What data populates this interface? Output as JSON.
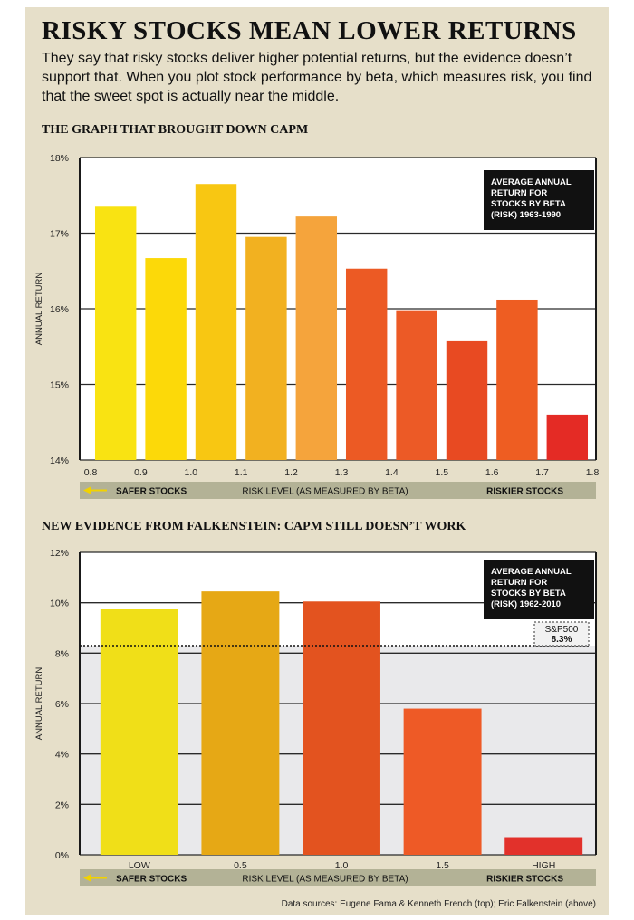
{
  "header": {
    "title": "RISKY STOCKS MEAN LOWER RETURNS",
    "subtitle": "They say that risky stocks deliver higher potential returns, but the evidence doesn’t support that. When you plot stock performance by beta, which measures risk, you find that the sweet spot is actually near the middle."
  },
  "colors": {
    "background": "#e6dfc9",
    "plot_area": "#ffffff",
    "shaded_zone": "#e9e9eb",
    "strip": "#b3b296",
    "legend_box": "#111111",
    "arrow": "#f2d200"
  },
  "chart_data": [
    {
      "type": "bar",
      "section_title": "THE GRAPH THAT BROUGHT DOWN CAPM",
      "ylabel": "ANNUAL RETURN",
      "xlabel": "RISK LEVEL (AS MEASURED BY BETA)",
      "left_label": "SAFER STOCKS",
      "right_label": "RISKIER STOCKS",
      "legend": [
        "AVERAGE ANNUAL",
        "RETURN FOR",
        "STOCKS BY BETA",
        "(RISK) 1963-1990"
      ],
      "ylim": [
        14,
        18
      ],
      "yticks": [
        14,
        15,
        16,
        17,
        18
      ],
      "ytick_labels": [
        "14%",
        "15%",
        "16%",
        "17%",
        "18%"
      ],
      "x_tick_labels": [
        "0.8",
        "0.9",
        "1.0",
        "1.1",
        "1.2",
        "1.3",
        "1.4",
        "1.5",
        "1.6",
        "1.7",
        "1.8"
      ],
      "grid": true,
      "values": [
        17.35,
        16.67,
        17.65,
        16.95,
        17.22,
        16.53,
        15.98,
        15.57,
        16.12,
        14.6
      ],
      "colors": [
        "#f9e312",
        "#fcd909",
        "#f8c712",
        "#f2b120",
        "#f5a43c",
        "#ec5a24",
        "#ec5a26",
        "#e84a22",
        "#ee5d22",
        "#e42b25"
      ]
    },
    {
      "type": "bar",
      "section_title": "NEW EVIDENCE FROM FALKENSTEIN: CAPM STILL DOESN’T WORK",
      "ylabel": "ANNUAL RETURN",
      "xlabel": "RISK LEVEL (AS MEASURED BY BETA)",
      "left_label": "SAFER STOCKS",
      "right_label": "RISKIER STOCKS",
      "legend": [
        "AVERAGE ANNUAL",
        "RETURN FOR",
        "STOCKS BY BETA",
        "(RISK) 1962-2010"
      ],
      "reference": {
        "name": "S&P500",
        "value": 8.3,
        "label": "8.3%"
      },
      "ylim": [
        0,
        12
      ],
      "yticks": [
        0,
        2,
        4,
        6,
        8,
        10,
        12
      ],
      "ytick_labels": [
        "0%",
        "2%",
        "4%",
        "6%",
        "8%",
        "10%",
        "12%"
      ],
      "categories": [
        "LOW",
        "0.5",
        "1.0",
        "1.5",
        "HIGH"
      ],
      "grid": true,
      "values": [
        9.75,
        10.45,
        10.05,
        5.8,
        0.7
      ],
      "colors": [
        "#f0df18",
        "#e6a815",
        "#e3531f",
        "#ee5a26",
        "#e2312b"
      ]
    }
  ],
  "footer": {
    "sources": "Data sources: Eugene Fama & Kenneth French (top); Eric Falkenstein (above)"
  }
}
